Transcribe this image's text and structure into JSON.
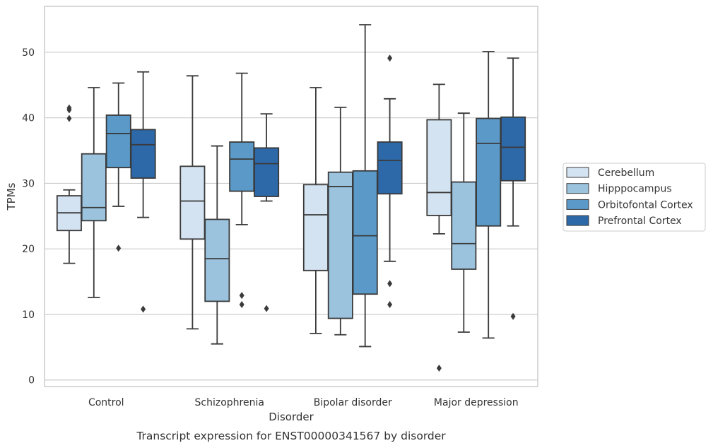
{
  "chart_data": {
    "type": "box",
    "caption": "Transcript expression for ENST00000341567 by disorder",
    "xlabel": "Disorder",
    "ylabel": "TPMs",
    "ylim": [
      -1,
      57
    ],
    "yticks": [
      0,
      10,
      20,
      30,
      40,
      50
    ],
    "grid": "horizontal",
    "legend_position": "right",
    "categories": [
      "Control",
      "Schizophrenia",
      "Bipolar disorder",
      "Major depression"
    ],
    "series": [
      {
        "name": "Cerebellum",
        "color": "#d4e3f1",
        "boxes": [
          {
            "whislo": 17.8,
            "q1": 22.8,
            "med": 25.5,
            "q3": 28.1,
            "whishi": 29.0,
            "fliers": [
              39.9,
              41.2,
              41.5
            ]
          },
          {
            "whislo": 7.8,
            "q1": 21.5,
            "med": 27.3,
            "q3": 32.6,
            "whishi": 46.4,
            "fliers": []
          },
          {
            "whislo": 7.1,
            "q1": 16.7,
            "med": 25.2,
            "q3": 29.8,
            "whishi": 44.6,
            "fliers": []
          },
          {
            "whislo": 22.3,
            "q1": 25.1,
            "med": 28.6,
            "q3": 39.7,
            "whishi": 45.1,
            "fliers": [
              1.8
            ]
          }
        ]
      },
      {
        "name": "Hipppocampus",
        "color": "#9bc3de",
        "boxes": [
          {
            "whislo": 12.6,
            "q1": 24.3,
            "med": 26.3,
            "q3": 34.5,
            "whishi": 44.6,
            "fliers": []
          },
          {
            "whislo": 5.5,
            "q1": 12.0,
            "med": 18.5,
            "q3": 24.5,
            "whishi": 35.7,
            "fliers": []
          },
          {
            "whislo": 6.9,
            "q1": 9.4,
            "med": 29.5,
            "q3": 31.7,
            "whishi": 41.6,
            "fliers": []
          },
          {
            "whislo": 7.3,
            "q1": 16.9,
            "med": 20.8,
            "q3": 30.2,
            "whishi": 40.7,
            "fliers": []
          }
        ]
      },
      {
        "name": "Orbitofontal Cortex",
        "color": "#5b9ac8",
        "boxes": [
          {
            "whislo": 26.5,
            "q1": 32.4,
            "med": 37.6,
            "q3": 40.4,
            "whishi": 45.3,
            "fliers": [
              20.1
            ]
          },
          {
            "whislo": 23.7,
            "q1": 28.8,
            "med": 33.7,
            "q3": 36.3,
            "whishi": 46.8,
            "fliers": [
              11.5,
              12.9
            ]
          },
          {
            "whislo": 5.1,
            "q1": 13.1,
            "med": 22.0,
            "q3": 31.9,
            "whishi": 54.2,
            "fliers": []
          },
          {
            "whislo": 6.4,
            "q1": 23.5,
            "med": 36.1,
            "q3": 39.9,
            "whishi": 50.1,
            "fliers": []
          }
        ]
      },
      {
        "name": "Prefrontal Cortex",
        "color": "#2d69a8",
        "boxes": [
          {
            "whislo": 24.8,
            "q1": 30.8,
            "med": 35.9,
            "q3": 38.2,
            "whishi": 47.0,
            "fliers": [
              10.8
            ]
          },
          {
            "whislo": 27.3,
            "q1": 28.0,
            "med": 33.0,
            "q3": 35.4,
            "whishi": 40.6,
            "fliers": [
              10.9
            ]
          },
          {
            "whislo": 18.1,
            "q1": 28.4,
            "med": 33.5,
            "q3": 36.3,
            "whishi": 42.9,
            "fliers": [
              11.5,
              14.7,
              49.1
            ]
          },
          {
            "whislo": 23.5,
            "q1": 30.4,
            "med": 35.5,
            "q3": 40.1,
            "whishi": 49.1,
            "fliers": [
              9.7
            ]
          }
        ]
      }
    ]
  }
}
